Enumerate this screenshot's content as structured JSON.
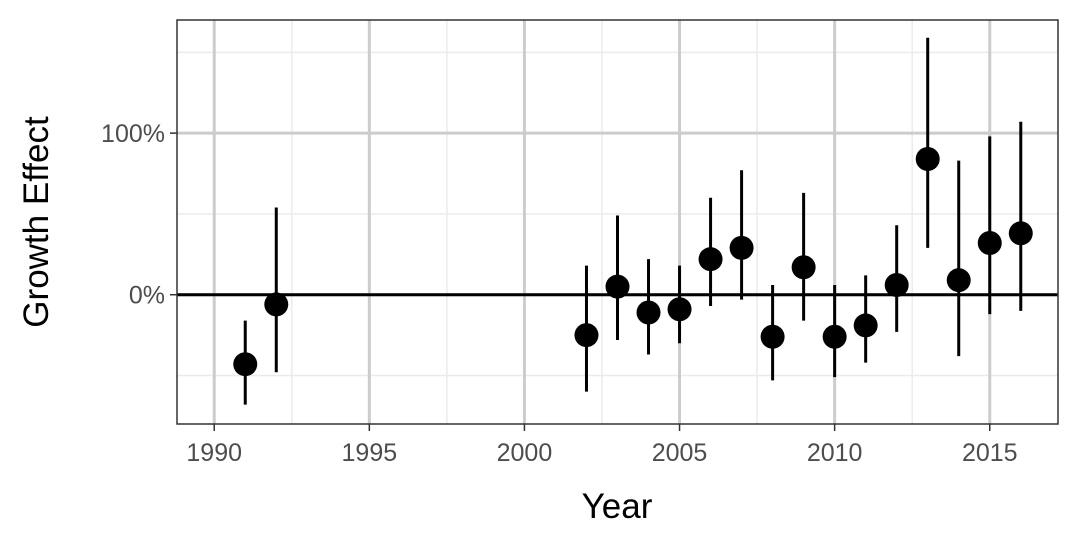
{
  "chart_data": {
    "type": "scatter",
    "title": "",
    "xlabel": "Year",
    "ylabel": "Growth Effect",
    "xlim": [
      1988.8,
      2017.2
    ],
    "ylim": [
      -80,
      170
    ],
    "x_ticks": [
      {
        "value": 1990,
        "label": "1990"
      },
      {
        "value": 1995,
        "label": "1995"
      },
      {
        "value": 2000,
        "label": "2000"
      },
      {
        "value": 2005,
        "label": "2005"
      },
      {
        "value": 2010,
        "label": "2010"
      },
      {
        "value": 2015,
        "label": "2015"
      }
    ],
    "y_ticks": [
      {
        "value": 0,
        "label": "0%"
      },
      {
        "value": 100,
        "label": "100%"
      }
    ],
    "y_unit": "%",
    "grid": true,
    "reference_line_y": 0,
    "point_color": "#000000",
    "points": [
      {
        "x": 1991,
        "y": -43,
        "lower": -68,
        "upper": -16
      },
      {
        "x": 1992,
        "y": -6,
        "lower": -48,
        "upper": 54
      },
      {
        "x": 2002,
        "y": -25,
        "lower": -60,
        "upper": 18
      },
      {
        "x": 2003,
        "y": 5,
        "lower": -28,
        "upper": 49
      },
      {
        "x": 2004,
        "y": -11,
        "lower": -37,
        "upper": 22
      },
      {
        "x": 2005,
        "y": -9,
        "lower": -30,
        "upper": 18
      },
      {
        "x": 2006,
        "y": 22,
        "lower": -7,
        "upper": 60
      },
      {
        "x": 2007,
        "y": 29,
        "lower": -3,
        "upper": 77
      },
      {
        "x": 2008,
        "y": -26,
        "lower": -53,
        "upper": 6
      },
      {
        "x": 2009,
        "y": 17,
        "lower": -16,
        "upper": 63
      },
      {
        "x": 2010,
        "y": -26,
        "lower": -51,
        "upper": 6
      },
      {
        "x": 2011,
        "y": -19,
        "lower": -42,
        "upper": 12
      },
      {
        "x": 2012,
        "y": 6,
        "lower": -23,
        "upper": 43
      },
      {
        "x": 2013,
        "y": 84,
        "lower": 29,
        "upper": 159
      },
      {
        "x": 2014,
        "y": 9,
        "lower": -38,
        "upper": 83
      },
      {
        "x": 2015,
        "y": 32,
        "lower": -12,
        "upper": 98
      },
      {
        "x": 2016,
        "y": 38,
        "lower": -10,
        "upper": 107
      }
    ]
  }
}
